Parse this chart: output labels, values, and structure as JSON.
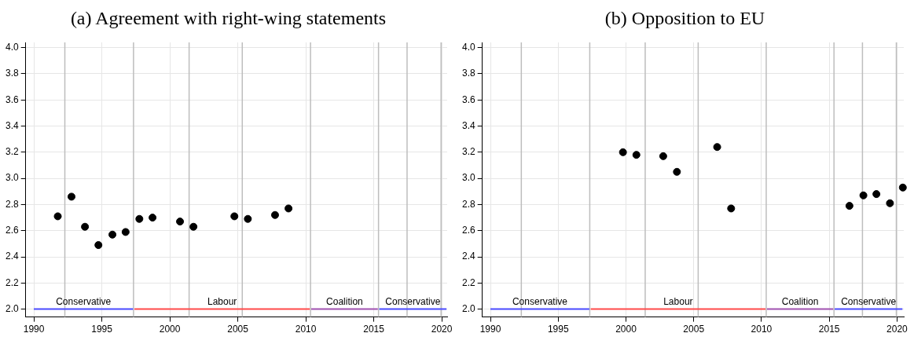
{
  "chart_data": [
    {
      "type": "scatter",
      "title": "(a) Agreement with right-wing statements",
      "xlim": [
        1989.4,
        2020.4
      ],
      "ylim": [
        1.94,
        4.04
      ],
      "xticks": [
        1990,
        1995,
        2000,
        2005,
        2010,
        2015,
        2020
      ],
      "yticks": [
        {
          "value": 2,
          "label": "2.0"
        },
        {
          "value": 2.2,
          "label": "2.2"
        },
        {
          "value": 2.4,
          "label": "2.4"
        },
        {
          "value": 2.6,
          "label": "2.6"
        },
        {
          "value": 2.8,
          "label": "2.8"
        },
        {
          "value": 3,
          "label": "3.0"
        },
        {
          "value": 3.2,
          "label": "3.2"
        },
        {
          "value": 3.4,
          "label": "3.4"
        },
        {
          "value": 3.6,
          "label": "3.6"
        },
        {
          "value": 3.8,
          "label": "3.8"
        },
        {
          "value": 4,
          "label": "4.0"
        }
      ],
      "grid": true,
      "legend": false,
      "series": [
        {
          "marker": "circle",
          "color": "#000000",
          "x": [
            1991.76,
            1992.77,
            1993.76,
            1994.75,
            1995.78,
            1996.75,
            1997.76,
            1998.73,
            2000.75,
            2001.74,
            2004.75,
            2005.74,
            2007.74,
            2008.73
          ],
          "values": [
            2.71,
            2.86,
            2.63,
            2.49,
            2.57,
            2.59,
            2.69,
            2.7,
            2.67,
            2.63,
            2.71,
            2.69,
            2.72,
            2.77
          ]
        },
        {
          "type": "line",
          "name": "Conservative",
          "color": "#4a4aff",
          "x": [
            1990,
            1997.3
          ],
          "values": [
            2,
            2
          ]
        },
        {
          "type": "line",
          "name": "Labour",
          "color": "#ff4a4a",
          "x": [
            1997.4,
            2010.3
          ],
          "values": [
            2,
            2
          ]
        },
        {
          "type": "line",
          "name": "Coalition",
          "color": "#a050b0",
          "x": [
            2010.4,
            2015.3
          ],
          "values": [
            2,
            2
          ]
        },
        {
          "type": "line",
          "name": "Conservative",
          "color": "#4a4aff",
          "x": [
            2015.4,
            2020.35
          ],
          "values": [
            2,
            2
          ]
        }
      ],
      "ref_lines": [
        {
          "axis": "x",
          "value": 1992.28,
          "color": "#bdbdbd"
        },
        {
          "axis": "x",
          "value": 1997.33,
          "color": "#bdbdbd"
        },
        {
          "axis": "x",
          "value": 2001.42,
          "color": "#bdbdbd"
        },
        {
          "axis": "x",
          "value": 2005.33,
          "color": "#bdbdbd"
        },
        {
          "axis": "x",
          "value": 2010.35,
          "color": "#bdbdbd"
        },
        {
          "axis": "x",
          "value": 2015.35,
          "color": "#bdbdbd"
        },
        {
          "axis": "x",
          "value": 2017.45,
          "color": "#bdbdbd"
        },
        {
          "axis": "x",
          "value": 2019.95,
          "color": "#bdbdbd"
        }
      ]
    },
    {
      "type": "scatter",
      "title": "(b) Opposition to EU",
      "xlim": [
        1989.4,
        2020.5
      ],
      "ylim": [
        1.94,
        4.04
      ],
      "xticks": [
        1990,
        1995,
        2000,
        2005,
        2010,
        2015,
        2020
      ],
      "yticks": [
        {
          "value": 2,
          "label": "2.0"
        },
        {
          "value": 2.2,
          "label": "2.2"
        },
        {
          "value": 2.4,
          "label": "2.4"
        },
        {
          "value": 2.6,
          "label": "2.6"
        },
        {
          "value": 2.8,
          "label": "2.8"
        },
        {
          "value": 3,
          "label": "3.0"
        },
        {
          "value": 3.2,
          "label": "3.2"
        },
        {
          "value": 3.4,
          "label": "3.4"
        },
        {
          "value": 3.6,
          "label": "3.6"
        },
        {
          "value": 3.8,
          "label": "3.8"
        },
        {
          "value": 4,
          "label": "4.0"
        }
      ],
      "grid": true,
      "legend": false,
      "series": [
        {
          "marker": "circle",
          "color": "#000000",
          "x": [
            1999.78,
            2000.77,
            2002.75,
            2003.76,
            2006.73,
            2007.76,
            2016.49,
            2017.52,
            2018.48,
            2019.48,
            2020.43
          ],
          "values": [
            3.2,
            3.18,
            3.17,
            3.05,
            3.24,
            2.77,
            2.79,
            2.87,
            2.88,
            2.81,
            2.93
          ]
        },
        {
          "type": "line",
          "name": "Conservative",
          "color": "#4a4aff",
          "x": [
            1990,
            1997.3
          ],
          "values": [
            2,
            2
          ]
        },
        {
          "type": "line",
          "name": "Labour",
          "color": "#ff4a4a",
          "x": [
            1997.4,
            2010.3
          ],
          "values": [
            2,
            2
          ]
        },
        {
          "type": "line",
          "name": "Coalition",
          "color": "#a050b0",
          "x": [
            2010.4,
            2015.3
          ],
          "values": [
            2,
            2
          ]
        },
        {
          "type": "line",
          "name": "Conservative",
          "color": "#4a4aff",
          "x": [
            2015.4,
            2020.4
          ],
          "values": [
            2,
            2
          ]
        }
      ],
      "ref_lines": [
        {
          "axis": "x",
          "value": 1992.28,
          "color": "#bdbdbd"
        },
        {
          "axis": "x",
          "value": 1997.33,
          "color": "#bdbdbd"
        },
        {
          "axis": "x",
          "value": 2001.42,
          "color": "#bdbdbd"
        },
        {
          "axis": "x",
          "value": 2005.33,
          "color": "#bdbdbd"
        },
        {
          "axis": "x",
          "value": 2010.35,
          "color": "#bdbdbd"
        },
        {
          "axis": "x",
          "value": 2015.35,
          "color": "#bdbdbd"
        },
        {
          "axis": "x",
          "value": 2017.45,
          "color": "#bdbdbd"
        },
        {
          "axis": "x",
          "value": 2019.95,
          "color": "#bdbdbd"
        }
      ]
    }
  ]
}
